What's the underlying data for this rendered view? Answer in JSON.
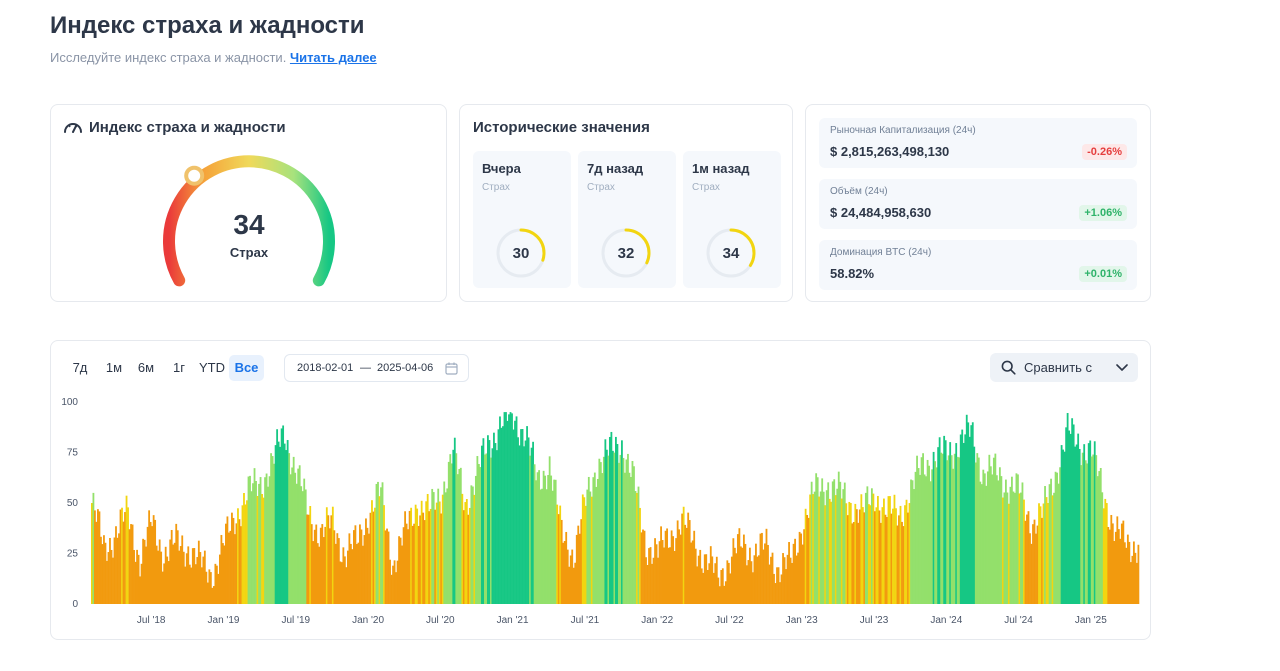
{
  "page": {
    "title": "Индекс страха и жадности",
    "subtitle": "Исследуйте индекс страха и жадности.",
    "read_more": "Читать далее"
  },
  "gauge": {
    "title": "Индекс страха и жадности",
    "icon": "speedometer-icon",
    "value": 34,
    "value_text": "34",
    "label": "Страх"
  },
  "historical": {
    "title": "Исторические значения",
    "items": [
      {
        "label": "Вчера",
        "sub": "Страх",
        "value": 30,
        "value_text": "30"
      },
      {
        "label": "7д назад",
        "sub": "Страх",
        "value": 32,
        "value_text": "32"
      },
      {
        "label": "1м назад",
        "sub": "Страх",
        "value": 34,
        "value_text": "34"
      }
    ]
  },
  "stats": [
    {
      "label": "Рыночная Капитализация (24ч)",
      "value": "$ 2,815,263,498,130",
      "change": "-0.26%",
      "direction": "down"
    },
    {
      "label": "Объём (24ч)",
      "value": "$ 24,484,958,630",
      "change": "+1.06%",
      "direction": "up"
    },
    {
      "label": "Доминация BTC (24ч)",
      "value": "58.82%",
      "change": "+0.01%",
      "direction": "up"
    }
  ],
  "toolbar": {
    "ranges": [
      "7д",
      "1м",
      "6м",
      "1г",
      "YTD",
      "Все"
    ],
    "active_range": "Все",
    "date_from": "2018-02-01",
    "date_sep": "—",
    "date_to": "2025-04-06",
    "compare_label": "Сравнить с"
  },
  "colors": {
    "extreme_fear": "#ea3a3a",
    "fear": "#f29a0e",
    "neutral": "#f2d510",
    "greed": "#93e06b",
    "extreme_greed": "#16c784",
    "accent": "#1a73e8"
  },
  "chart_data": {
    "type": "bar",
    "title": "",
    "xlabel": "",
    "ylabel": "",
    "ylim": [
      0,
      100
    ],
    "yticks": [
      "0",
      "25",
      "50",
      "75",
      "100"
    ],
    "xticks": [
      "Jul '18",
      "Jan '19",
      "Jul '19",
      "Jan '20",
      "Jul '20",
      "Jan '21",
      "Jul '21",
      "Jan '22",
      "Jul '22",
      "Jan '23",
      "Jul '23",
      "Jan '24",
      "Jul '24",
      "Jan '25"
    ],
    "x_start": "2018-02",
    "x_end": "2025-04",
    "categories": [
      "2018-02",
      "2018-03",
      "2018-04",
      "2018-05",
      "2018-06",
      "2018-07",
      "2018-08",
      "2018-09",
      "2018-10",
      "2018-11",
      "2018-12",
      "2019-01",
      "2019-02",
      "2019-03",
      "2019-04",
      "2019-05",
      "2019-06",
      "2019-07",
      "2019-08",
      "2019-09",
      "2019-10",
      "2019-11",
      "2019-12",
      "2020-01",
      "2020-02",
      "2020-03",
      "2020-04",
      "2020-05",
      "2020-06",
      "2020-07",
      "2020-08",
      "2020-09",
      "2020-10",
      "2020-11",
      "2020-12",
      "2021-01",
      "2021-02",
      "2021-03",
      "2021-04",
      "2021-05",
      "2021-06",
      "2021-07",
      "2021-08",
      "2021-09",
      "2021-10",
      "2021-11",
      "2021-12",
      "2022-01",
      "2022-02",
      "2022-03",
      "2022-04",
      "2022-05",
      "2022-06",
      "2022-07",
      "2022-08",
      "2022-09",
      "2022-10",
      "2022-11",
      "2022-12",
      "2023-01",
      "2023-02",
      "2023-03",
      "2023-04",
      "2023-05",
      "2023-06",
      "2023-07",
      "2023-08",
      "2023-09",
      "2023-10",
      "2023-11",
      "2023-12",
      "2024-01",
      "2024-02",
      "2024-03",
      "2024-04",
      "2024-05",
      "2024-06",
      "2024-07",
      "2024-08",
      "2024-09",
      "2024-10",
      "2024-11",
      "2024-12",
      "2025-01",
      "2025-02",
      "2025-03",
      "2025-04"
    ],
    "values": [
      50,
      28,
      35,
      45,
      22,
      40,
      25,
      30,
      28,
      20,
      15,
      30,
      45,
      55,
      60,
      70,
      85,
      65,
      45,
      35,
      40,
      25,
      30,
      45,
      55,
      20,
      35,
      50,
      45,
      55,
      75,
      50,
      65,
      80,
      90,
      92,
      85,
      60,
      70,
      35,
      25,
      50,
      70,
      75,
      80,
      60,
      30,
      25,
      35,
      40,
      32,
      20,
      15,
      22,
      30,
      25,
      28,
      18,
      20,
      40,
      55,
      60,
      55,
      50,
      45,
      55,
      45,
      45,
      55,
      70,
      72,
      75,
      80,
      85,
      65,
      65,
      60,
      55,
      40,
      45,
      65,
      85,
      80,
      75,
      55,
      35,
      30
    ]
  }
}
